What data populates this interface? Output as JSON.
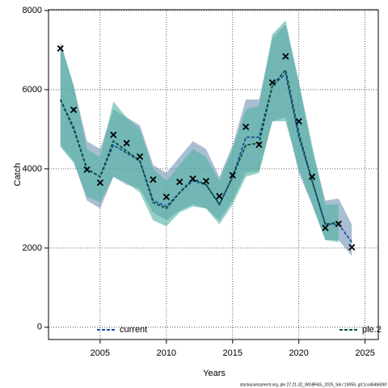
{
  "chart_data": {
    "type": "line",
    "xlabel": "Years",
    "ylabel": "Catch",
    "footnote": "stockassessment.org, ple.27.21-32_WGBFAS_2025_SA r:19059, git:1cc464b606f",
    "x": [
      2002,
      2003,
      2004,
      2005,
      2006,
      2007,
      2008,
      2009,
      2010,
      2011,
      2012,
      2013,
      2014,
      2015,
      2016,
      2017,
      2018,
      2019,
      2020,
      2021,
      2022,
      2023,
      2024
    ],
    "observed": [
      7040,
      5490,
      3980,
      3650,
      4860,
      4650,
      4310,
      3730,
      3290,
      3670,
      3750,
      3690,
      3310,
      3840,
      5060,
      4610,
      6180,
      6840,
      5200,
      3800,
      2510,
      2610,
      2020
    ],
    "series": [
      {
        "name": "current",
        "color": "#1f4f9c",
        "band_color": "#6f93b5",
        "values": [
          5750,
          5050,
          4000,
          3800,
          4600,
          4400,
          4200,
          3200,
          3050,
          3400,
          3700,
          3600,
          3100,
          3800,
          4800,
          4800,
          6100,
          6400,
          4800,
          3700,
          2600,
          2600,
          2150
        ],
        "upper": [
          7200,
          6100,
          4700,
          4500,
          5500,
          5300,
          5100,
          4100,
          3900,
          4300,
          4700,
          4500,
          3800,
          4600,
          5750,
          5750,
          7300,
          7650,
          6200,
          4500,
          3200,
          3250,
          2600
        ],
        "lower": [
          4600,
          4200,
          3200,
          3000,
          3800,
          3600,
          3500,
          2900,
          2700,
          2950,
          3100,
          3000,
          2700,
          3200,
          3900,
          3950,
          5200,
          5300,
          3900,
          3100,
          2200,
          2200,
          1800
        ]
      },
      {
        "name": "ple.2",
        "color": "#0b4f45",
        "band_color": "#4fb3a0",
        "values": [
          5750,
          5000,
          4000,
          3800,
          4700,
          4450,
          4200,
          3150,
          3000,
          3400,
          3750,
          3600,
          3100,
          3800,
          4600,
          4650,
          6100,
          6500,
          4900,
          3700,
          2600,
          2650,
          null
        ],
        "upper": [
          7200,
          6100,
          4500,
          4300,
          5700,
          5300,
          5000,
          4000,
          3700,
          4100,
          4500,
          4300,
          3700,
          4500,
          5500,
          5600,
          7400,
          7750,
          6200,
          4600,
          3100,
          3100,
          null
        ],
        "lower": [
          4550,
          4150,
          3300,
          3150,
          3800,
          3650,
          3400,
          2700,
          2550,
          2900,
          3050,
          3000,
          2600,
          3100,
          3800,
          3900,
          5200,
          5200,
          4000,
          3100,
          2200,
          2150,
          null
        ]
      }
    ],
    "xlim": [
      2001.1,
      2026
    ],
    "ylim": [
      -310,
      8020
    ],
    "xticks": [
      2005,
      2010,
      2015,
      2020,
      2025
    ],
    "yticks": [
      0,
      2000,
      4000,
      6000,
      8000
    ],
    "grid": true,
    "legend": "bottom"
  }
}
